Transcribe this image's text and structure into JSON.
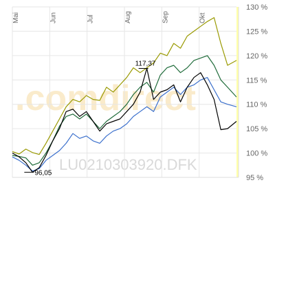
{
  "chart_data": {
    "type": "line",
    "x_labels": [
      "Mai",
      "Jun",
      "Jul",
      "Aug",
      "Sep",
      "Okt"
    ],
    "y_ticks": [
      "95 %",
      "100 %",
      "105 %",
      "110 %",
      "115 %",
      "120 %",
      "125 %",
      "130 %"
    ],
    "ylim": [
      95,
      130
    ],
    "y_unit": "%",
    "grid": true,
    "watermark": ".comdirect",
    "instrument_label": "LU0210303920.DFK",
    "annotations": [
      {
        "text": "96,05",
        "x": 0.09,
        "y": 96.05
      },
      {
        "text": "117,37",
        "x": 0.6,
        "y": 117.37
      }
    ],
    "series": [
      {
        "color": "#999900",
        "x": [
          0,
          0.03,
          0.06,
          0.09,
          0.12,
          0.15,
          0.18,
          0.21,
          0.24,
          0.27,
          0.3,
          0.33,
          0.36,
          0.39,
          0.42,
          0.45,
          0.48,
          0.51,
          0.54,
          0.57,
          0.6,
          0.63,
          0.66,
          0.69,
          0.72,
          0.75,
          0.78,
          0.81,
          0.84,
          0.87,
          0.9,
          0.93,
          0.96,
          1.0
        ],
        "values": [
          100.3,
          99.8,
          100.8,
          100.1,
          99.7,
          102.0,
          104.5,
          107.0,
          109.5,
          111.0,
          110.5,
          111.8,
          111.0,
          110.8,
          113.5,
          112.5,
          114.0,
          115.5,
          117.5,
          116.5,
          117.5,
          118.5,
          120.5,
          120.0,
          122.5,
          121.5,
          124.0,
          125.0,
          126.0,
          127.0,
          127.8,
          122.5,
          118.0,
          119.0
        ]
      },
      {
        "color": "#1f6b3a",
        "x": [
          0,
          0.03,
          0.06,
          0.09,
          0.12,
          0.15,
          0.18,
          0.21,
          0.24,
          0.27,
          0.3,
          0.33,
          0.36,
          0.39,
          0.42,
          0.45,
          0.48,
          0.51,
          0.54,
          0.57,
          0.6,
          0.63,
          0.66,
          0.69,
          0.72,
          0.75,
          0.78,
          0.81,
          0.84,
          0.87,
          0.9,
          0.93,
          0.96,
          1.0
        ],
        "values": [
          99.5,
          99.3,
          99.0,
          97.5,
          98.0,
          100.0,
          102.5,
          105.5,
          107.5,
          108.0,
          107.0,
          108.0,
          106.5,
          105.0,
          106.5,
          107.5,
          108.5,
          110.0,
          112.0,
          113.5,
          114.5,
          112.5,
          116.0,
          117.5,
          118.0,
          116.5,
          117.5,
          119.0,
          119.5,
          120.0,
          118.0,
          115.0,
          113.5,
          111.5
        ]
      },
      {
        "color": "#3a6fcc",
        "x": [
          0,
          0.03,
          0.06,
          0.09,
          0.12,
          0.15,
          0.18,
          0.21,
          0.24,
          0.27,
          0.3,
          0.33,
          0.36,
          0.39,
          0.42,
          0.45,
          0.48,
          0.51,
          0.54,
          0.57,
          0.6,
          0.63,
          0.66,
          0.69,
          0.72,
          0.75,
          0.78,
          0.81,
          0.84,
          0.87,
          0.9,
          0.93,
          0.96,
          1.0
        ],
        "values": [
          99.2,
          98.5,
          97.5,
          96.3,
          96.8,
          98.5,
          99.5,
          100.5,
          102.0,
          104.0,
          103.0,
          103.5,
          102.5,
          102.0,
          103.5,
          104.5,
          105.0,
          106.0,
          107.5,
          108.5,
          109.5,
          108.5,
          111.5,
          112.5,
          113.5,
          112.0,
          113.5,
          114.0,
          115.0,
          115.5,
          113.0,
          110.5,
          110.0,
          109.5
        ]
      },
      {
        "color": "#000000",
        "x": [
          0,
          0.03,
          0.06,
          0.09,
          0.12,
          0.15,
          0.18,
          0.21,
          0.24,
          0.27,
          0.3,
          0.33,
          0.36,
          0.39,
          0.42,
          0.45,
          0.48,
          0.51,
          0.54,
          0.57,
          0.6,
          0.63,
          0.66,
          0.69,
          0.72,
          0.75,
          0.78,
          0.81,
          0.84,
          0.87,
          0.9,
          0.93,
          0.96,
          1.0
        ],
        "values": [
          100.0,
          99.2,
          98.0,
          96.05,
          97.0,
          99.5,
          102.5,
          105.0,
          108.5,
          109.0,
          107.5,
          108.5,
          106.5,
          104.5,
          106.0,
          106.5,
          107.0,
          108.5,
          110.0,
          112.5,
          117.37,
          111.0,
          112.5,
          113.0,
          114.0,
          110.5,
          113.5,
          115.5,
          116.5,
          114.0,
          111.0,
          104.8,
          105.0,
          106.5
        ]
      }
    ]
  }
}
